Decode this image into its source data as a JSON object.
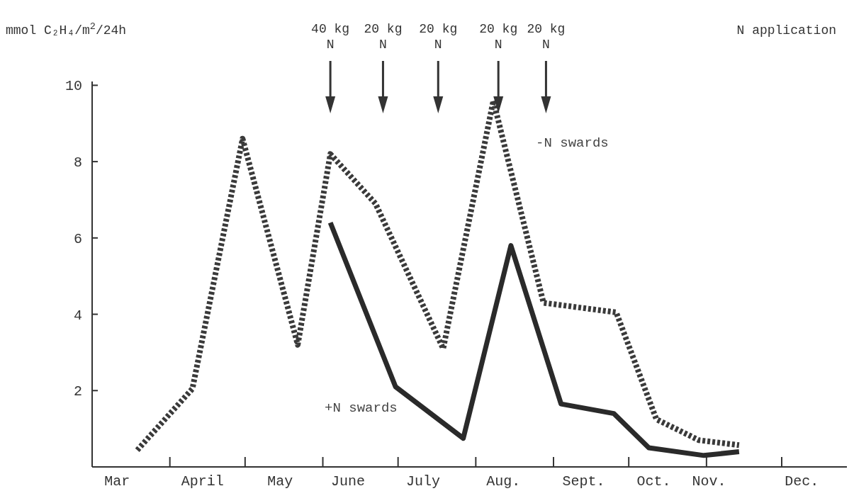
{
  "chart_data": {
    "type": "line",
    "ylabel": "mmol C₂H₄/m$^{2}$/24h",
    "xlim": [
      "--03-01",
      "--12-27"
    ],
    "ylim": [
      0,
      10.1
    ],
    "xticks": [
      {
        "value": "--03-11",
        "label": "Mar"
      },
      {
        "value": "--04-01",
        "label": null
      },
      {
        "value": "--04-14",
        "label": "April"
      },
      {
        "value": "--05-01",
        "label": null
      },
      {
        "value": "--05-15",
        "label": "May"
      },
      {
        "value": "--06-01",
        "label": null
      },
      {
        "value": "--06-11",
        "label": "June"
      },
      {
        "value": "--07-01",
        "label": null
      },
      {
        "value": "--07-11",
        "label": "July"
      },
      {
        "value": "--08-01",
        "label": null
      },
      {
        "value": "--08-12",
        "label": "Aug."
      },
      {
        "value": "--09-01",
        "label": null
      },
      {
        "value": "--09-13",
        "label": "Sept."
      },
      {
        "value": "--10-01",
        "label": null
      },
      {
        "value": "--10-11",
        "label": "Oct."
      },
      {
        "value": "--11-01",
        "label": null
      },
      {
        "value": "--11-02",
        "label": "Nov."
      },
      {
        "value": "--12-01",
        "label": null
      },
      {
        "value": "--12-09",
        "label": "Dec."
      }
    ],
    "yticks": [
      2,
      4,
      6,
      8,
      10
    ],
    "grid": false,
    "marker": "none",
    "series": [
      {
        "name": "-N swards",
        "color": "#3a3a3a",
        "line_style": "dotted",
        "x": [
          "--03-19",
          "--04-10",
          "--04-30",
          "--05-22",
          "--06-04",
          "--06-22",
          "--07-19",
          "--08-08",
          "--08-28",
          "--09-26",
          "--10-12",
          "--10-29",
          "--11-14"
        ],
        "values": [
          0.44,
          2.05,
          8.6,
          3.2,
          8.2,
          6.9,
          3.1,
          9.6,
          4.3,
          4.05,
          1.25,
          0.7,
          0.57
        ]
      },
      {
        "name": "+N swards",
        "color": "#2a2a2a",
        "line_style": "solid",
        "x": [
          "--06-04",
          "--06-30",
          "--07-27",
          "--08-15",
          "--09-04",
          "--09-25",
          "--10-09",
          "--10-31",
          "--11-14"
        ],
        "values": [
          6.4,
          2.1,
          0.75,
          5.8,
          1.65,
          1.4,
          0.5,
          0.3,
          0.4
        ]
      }
    ],
    "ref_lines": [
      {
        "axis": "x",
        "value": "--06-04",
        "label": "40 kg\nN"
      },
      {
        "axis": "x",
        "value": "--06-25",
        "label": "20 kg\nN"
      },
      {
        "axis": "x",
        "value": "--07-17",
        "label": "20 kg\nN"
      },
      {
        "axis": "x",
        "value": "--08-10",
        "label": "20 kg\nN"
      },
      {
        "axis": "x",
        "value": "--08-29",
        "label": "20 kg\nN"
      }
    ],
    "annotations": [
      "N application"
    ]
  }
}
